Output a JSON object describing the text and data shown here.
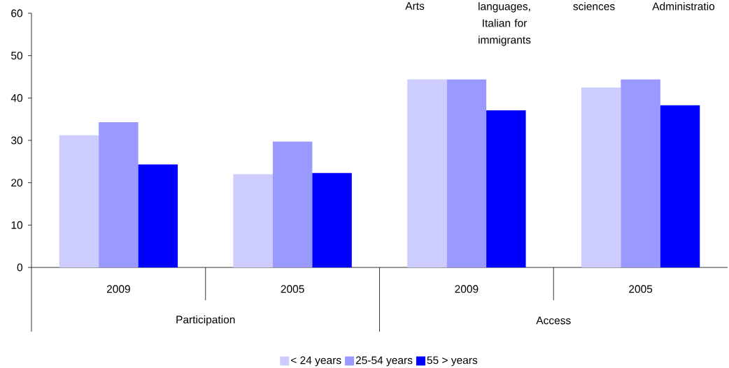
{
  "chart_data": {
    "type": "bar",
    "categories": [
      "2009",
      "2005",
      "2009",
      "2005"
    ],
    "series": [
      {
        "name": "< 24 years",
        "color": "#ccccff",
        "values": [
          31.2,
          22.0,
          44.4,
          42.5
        ]
      },
      {
        "name": "25-54 years",
        "color": "#9999ff",
        "values": [
          34.3,
          29.7,
          44.4,
          44.4
        ]
      },
      {
        "name": "55 > years",
        "color": "#0000ff",
        "values": [
          24.3,
          22.3,
          37.1,
          38.3
        ]
      }
    ],
    "ylim": [
      0,
      60
    ],
    "yticks": [
      0,
      10,
      20,
      30,
      40,
      50,
      60
    ],
    "legend": "bottom",
    "annotations": [
      "Participation",
      "Access",
      "Arts",
      "languages, Italian for immigrants",
      "sciences",
      "Administratio"
    ]
  }
}
